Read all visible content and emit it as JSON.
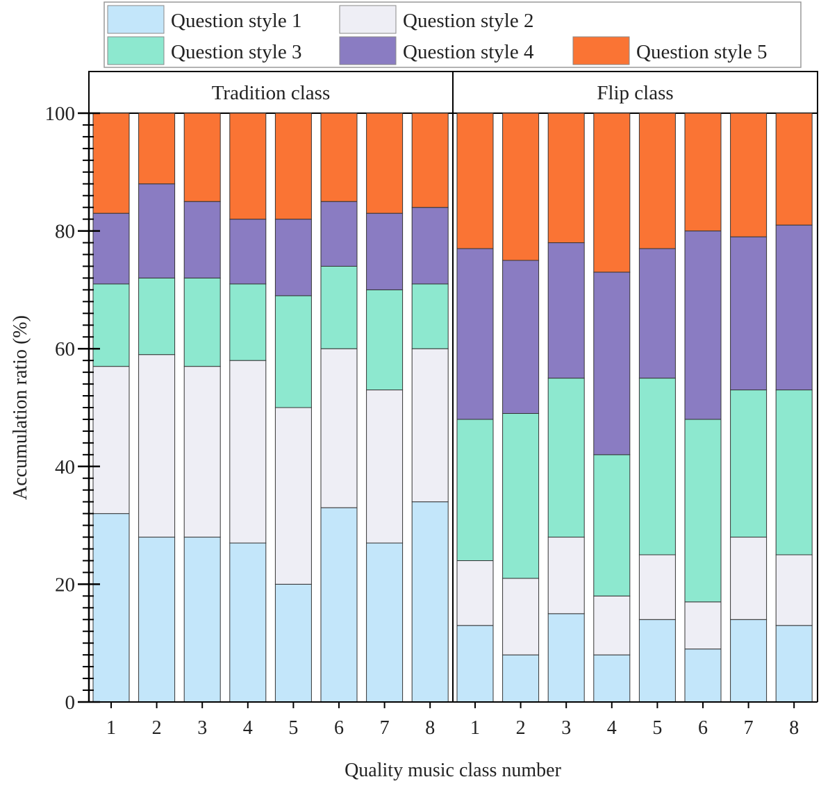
{
  "chart_data": {
    "type": "bar",
    "stacked": true,
    "title": "",
    "xlabel": "Quality music class number",
    "ylabel": "Accumulation ratio (%)",
    "ylim": [
      0,
      100
    ],
    "yticks": [
      0,
      20,
      40,
      60,
      80,
      100
    ],
    "yminor_step": 2,
    "grid": false,
    "legend_position": "top",
    "categories": [
      "1",
      "2",
      "3",
      "4",
      "5",
      "6",
      "7",
      "8"
    ],
    "series_names": [
      "Question style 1",
      "Question style 2",
      "Question style 3",
      "Question style 4",
      "Question style 5"
    ],
    "colors": [
      "#C3E6FA",
      "#EEEEF5",
      "#8DE8CF",
      "#8A7CC2",
      "#FA7434"
    ],
    "panels": [
      {
        "title": "Tradition class",
        "cumulative": [
          [
            32,
            57,
            71,
            83,
            100
          ],
          [
            28,
            59,
            72,
            88,
            100
          ],
          [
            28,
            57,
            72,
            85,
            100
          ],
          [
            27,
            58,
            71,
            82,
            100
          ],
          [
            20,
            50,
            69,
            82,
            100
          ],
          [
            33,
            60,
            74,
            85,
            100
          ],
          [
            27,
            53,
            70,
            83,
            100
          ],
          [
            34,
            60,
            71,
            84,
            100
          ]
        ]
      },
      {
        "title": "Flip class",
        "cumulative": [
          [
            13,
            24,
            48,
            77,
            100
          ],
          [
            8,
            21,
            49,
            75,
            100
          ],
          [
            15,
            28,
            55,
            78,
            100
          ],
          [
            8,
            18,
            42,
            73,
            100
          ],
          [
            14,
            25,
            55,
            77,
            100
          ],
          [
            9,
            17,
            48,
            80,
            100
          ],
          [
            14,
            28,
            53,
            79,
            100
          ],
          [
            13,
            25,
            53,
            81,
            100
          ]
        ]
      }
    ]
  }
}
